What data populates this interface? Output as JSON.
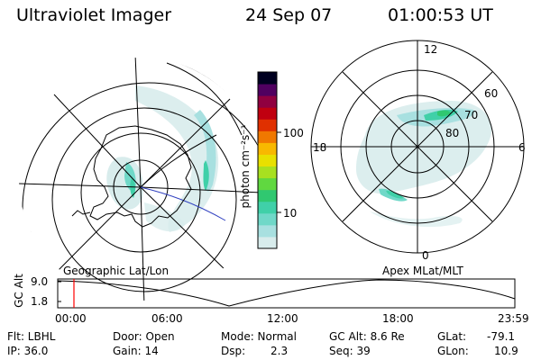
{
  "header": {
    "instrument": "Ultraviolet Imager",
    "date": "24 Sep 07",
    "time": "01:00:53 UT"
  },
  "left_panel": {
    "caption": "Geographic Lat/Lon"
  },
  "right_panel": {
    "caption": "Apex MLat/MLT",
    "mlt_labels": {
      "top": "12",
      "right": "6",
      "bottom": "0",
      "left": "18"
    },
    "lat_labels": [
      "60",
      "70",
      "80"
    ]
  },
  "colorbar": {
    "unit_label": "photon cm⁻²s⁻¹",
    "ticks": [
      "100",
      "10"
    ],
    "scale": "log",
    "colors": [
      "#d8ecec",
      "#a8e0e0",
      "#70d8c8",
      "#40d0a8",
      "#30c870",
      "#60d840",
      "#a8e020",
      "#e8e000",
      "#f8b800",
      "#f07800",
      "#e03000",
      "#c00010",
      "#900040",
      "#500060",
      "#000020"
    ]
  },
  "timeline": {
    "axis_label": "GC Alt",
    "y_ticks": [
      "9.0",
      "1.8"
    ],
    "x_ticks": [
      "00:00",
      "06:00",
      "12:00",
      "18:00",
      "23:59"
    ],
    "cursor_color": "#ff0000"
  },
  "status": {
    "flt": "Flt: LBHL",
    "ip": "IP: 36.0",
    "door": "Door: Open",
    "gain": "Gain: 14",
    "mode": "Mode: Normal",
    "dsp_label": "Dsp:",
    "dsp_value": "2.3",
    "gcalt": "GC Alt: 8.6 Re",
    "seq": "Seq: 39",
    "glat_label": "GLat:",
    "glat_value": "-79.1",
    "glon_label": "GLon:",
    "glon_value": "10.9"
  }
}
